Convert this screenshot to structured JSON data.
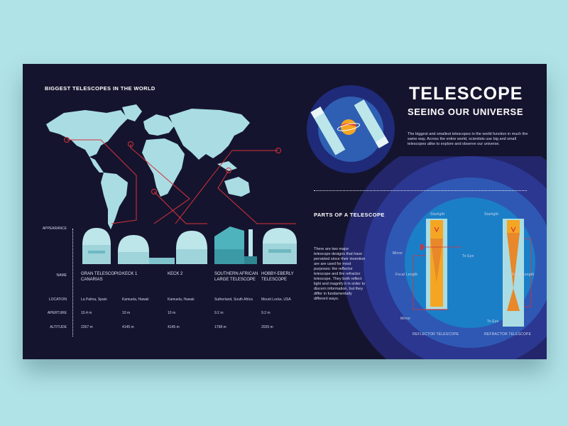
{
  "map_section": {
    "title": "BIGGEST TELESCOPES IN THE WORLD"
  },
  "header": {
    "title": "TELESCOPE",
    "subtitle": "SEEING OUR UNIVERSE",
    "description": "The biggest and smallest telescopes in the world function in much the same way. Across the entire world, scientists use big and small telescopes alike to explore and observe our universe."
  },
  "table": {
    "row_labels": {
      "appearance": "APPEARANCE",
      "name": "NAME",
      "location": "LOCATION",
      "aperture": "APERTURE",
      "altitude": "ALTITUDE"
    },
    "telescopes": [
      {
        "name": "GRAN TELESCOPIO CANARIAS",
        "location": "La Palma, Spain",
        "aperture": "10.4 m",
        "altitude": "2267 m"
      },
      {
        "name": "KECK 1",
        "location": "Kamuela, Hawaii",
        "aperture": "10 m",
        "altitude": "4145 m"
      },
      {
        "name": "KECK 2",
        "location": "Kamuela, Hawaii",
        "aperture": "10 m",
        "altitude": "4145 m"
      },
      {
        "name": "SOUTHERN AFRICAN LARGE TELESCOPE",
        "location": "Sutherland, South Africa",
        "aperture": "9.2 m",
        "altitude": "1798 m"
      },
      {
        "name": "HOBBY-EBERLY TELESCOPE",
        "location": "Mount Locke, USA",
        "aperture": "9.2 m",
        "altitude": "2026 m"
      }
    ]
  },
  "parts_section": {
    "title": "PARTS OF A TELESCOPE",
    "description": "There are two major telescope designs that have persisted since their invention are are used for most purposes: the reflector telescope and the refractor telescope. They both reflect light and magnify it in order to discern information, but they differ in fundamentally different ways."
  },
  "diagram": {
    "reflector": {
      "title": "REFLECTOR TELESCOPE",
      "starlight": "Starlight",
      "mirror_top": "Mirror",
      "to_eye": "To Eye",
      "focal_length": "Focal Length",
      "mirror_bottom": "Mirror"
    },
    "refractor": {
      "title": "REFRACTOR TELESCOPE",
      "starlight": "Starlight",
      "focal_length": "Focal Length",
      "to_eye": "To Eye"
    }
  },
  "colors": {
    "background": "#b0e3e8",
    "panel": "#15142e",
    "accent_red": "#d6323a",
    "map_land": "#a9dde3",
    "circle_blue": "#1b7fc8",
    "orange": "#f4a623"
  }
}
